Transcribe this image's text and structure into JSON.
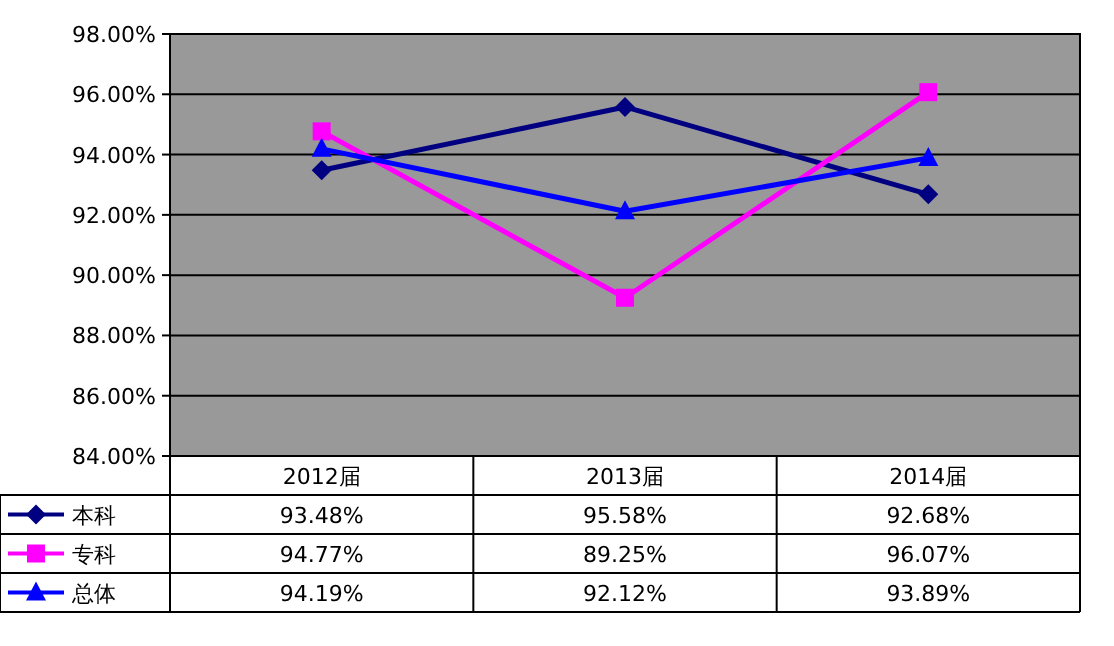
{
  "chart_data": {
    "type": "line",
    "categories": [
      "2012届",
      "2013届",
      "2014届"
    ],
    "series": [
      {
        "name": "本科",
        "color": "#000080",
        "marker": "diamond",
        "values": [
          93.48,
          95.58,
          92.68
        ],
        "value_labels": [
          "93.48%",
          "95.58%",
          "92.68%"
        ]
      },
      {
        "name": "专科",
        "color": "#ff00ff",
        "marker": "square",
        "values": [
          94.77,
          89.25,
          96.07
        ],
        "value_labels": [
          "94.77%",
          "89.25%",
          "96.07%"
        ]
      },
      {
        "name": "总体",
        "color": "#0000ff",
        "marker": "triangle",
        "values": [
          94.19,
          92.12,
          93.89
        ],
        "value_labels": [
          "94.19%",
          "92.12%",
          "93.89%"
        ]
      }
    ],
    "ylim": [
      84,
      98
    ],
    "yticks": [
      {
        "value": 84,
        "label": "84.00%"
      },
      {
        "value": 86,
        "label": "86.00%"
      },
      {
        "value": 88,
        "label": "88.00%"
      },
      {
        "value": 90,
        "label": "90.00%"
      },
      {
        "value": 92,
        "label": "92.00%"
      },
      {
        "value": 94,
        "label": "94.00%"
      },
      {
        "value": 96,
        "label": "96.00%"
      },
      {
        "value": 98,
        "label": "98.00%"
      }
    ],
    "grid": "y",
    "legend": "bottom",
    "line_style": "solid"
  }
}
